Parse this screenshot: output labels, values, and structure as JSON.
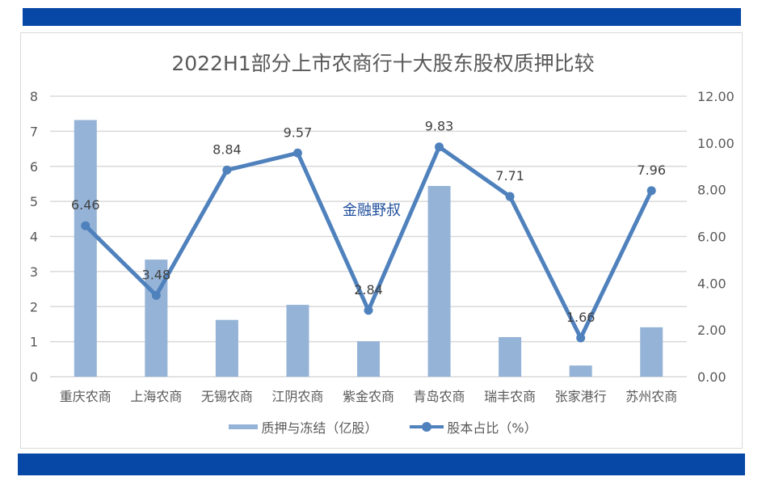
{
  "header": {
    "band_color": "#0747a6"
  },
  "footer": {
    "band_color": "#0747a6"
  },
  "watermark": "金融野叔",
  "legend": {
    "bar_label": "质押与冻结（亿股）",
    "line_label": "股本占比（%）"
  },
  "colors": {
    "bar": "#95b3d7",
    "line": "#4f81bd",
    "grid": "#d9d9d9",
    "text": "#595959"
  },
  "chart_data": {
    "type": "bar+line",
    "title": "2022H1部分上市农商行十大股东股权质押比较",
    "categories": [
      "重庆农商",
      "上海农商",
      "无锡农商",
      "江阴农商",
      "紫金农商",
      "青岛农商",
      "瑞丰农商",
      "张家港行",
      "苏州农商"
    ],
    "series": [
      {
        "name": "质押与冻结（亿股）",
        "type": "bar",
        "axis": "left",
        "values": [
          7.32,
          3.34,
          1.62,
          2.05,
          1.01,
          5.44,
          1.13,
          0.32,
          1.41
        ]
      },
      {
        "name": "股本占比（%）",
        "type": "line",
        "axis": "right",
        "values": [
          6.46,
          3.48,
          8.84,
          9.57,
          2.84,
          9.83,
          7.71,
          1.66,
          7.96
        ],
        "data_labels": [
          "6.46",
          "3.48",
          "8.84",
          "9.57",
          "2.84",
          "9.83",
          "7.71",
          "1.66",
          "7.96"
        ]
      }
    ],
    "left_axis": {
      "ylim": [
        0,
        8
      ],
      "ticks": [
        "0",
        "1",
        "2",
        "3",
        "4",
        "5",
        "6",
        "7",
        "8"
      ]
    },
    "right_axis": {
      "ylim": [
        0,
        12
      ],
      "ticks": [
        "0.00",
        "2.00",
        "4.00",
        "6.00",
        "8.00",
        "10.00",
        "12.00"
      ]
    },
    "xlabel": "",
    "ylabel": "",
    "grid": true,
    "legend_position": "bottom"
  }
}
